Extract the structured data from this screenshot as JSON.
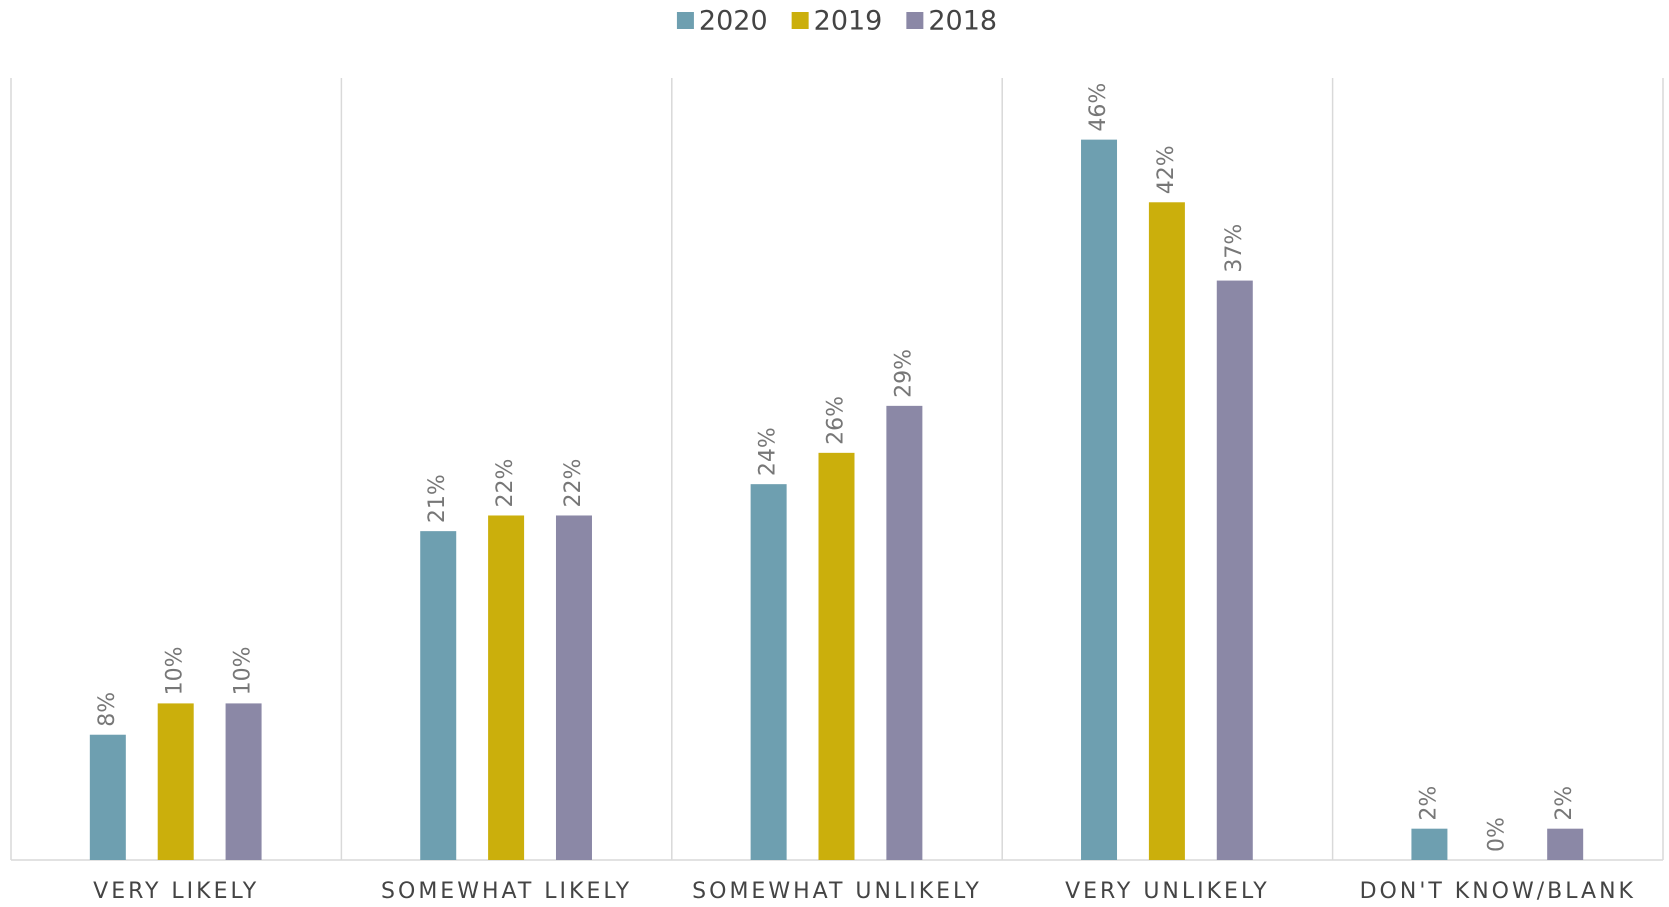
{
  "chart_data": {
    "type": "bar",
    "categories": [
      "VERY LIKELY",
      "SOMEWHAT LIKELY",
      "SOMEWHAT UNLIKELY",
      "VERY UNLIKELY",
      "DON'T KNOW/BLANK"
    ],
    "series": [
      {
        "name": "2020",
        "color": "#6e9fb0",
        "values": [
          8,
          21,
          24,
          46,
          2
        ],
        "value_labels": [
          "8%",
          "21%",
          "24%",
          "46%",
          "2%"
        ]
      },
      {
        "name": "2019",
        "color": "#cbaf0c",
        "values": [
          10,
          22,
          26,
          42,
          0
        ],
        "value_labels": [
          "10%",
          "22%",
          "26%",
          "42%",
          "0%"
        ]
      },
      {
        "name": "2018",
        "color": "#8b88a6",
        "values": [
          10,
          22,
          29,
          37,
          2
        ],
        "value_labels": [
          "10%",
          "22%",
          "29%",
          "37%",
          "2%"
        ]
      }
    ],
    "legend": "top"
  }
}
